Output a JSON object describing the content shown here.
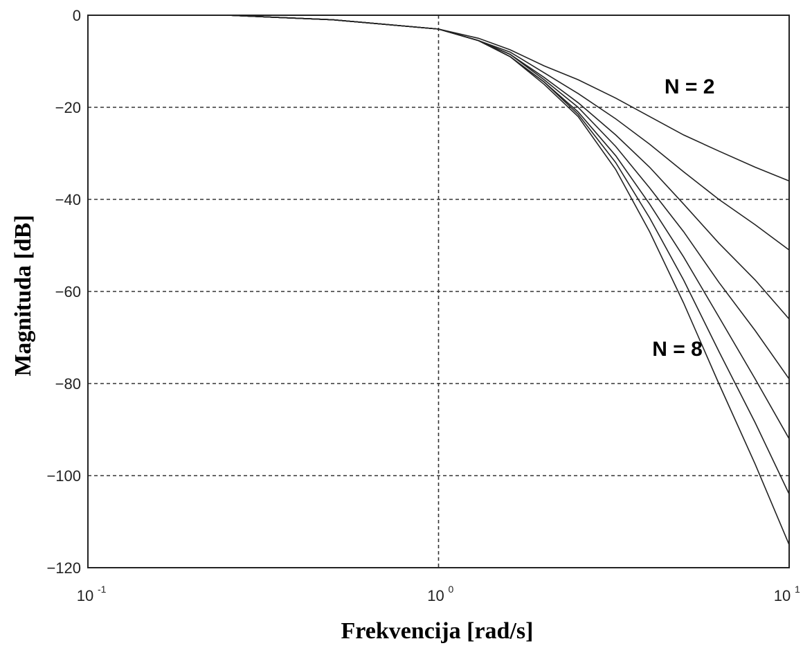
{
  "chart_data": {
    "type": "line",
    "xlabel": "Frekvencija [rad/s]",
    "ylabel": "Magnituda [dB]",
    "xscale": "log",
    "xlim": [
      0.1,
      10
    ],
    "ylim": [
      -120,
      0
    ],
    "grid": true,
    "x_ticks": [
      {
        "base": "10",
        "exp": "-1",
        "value": 0.1
      },
      {
        "base": "10",
        "exp": "0",
        "value": 1
      },
      {
        "base": "10",
        "exp": "1",
        "value": 10
      }
    ],
    "y_ticks": [
      {
        "label": "0",
        "value": 0
      },
      {
        "label": "−20",
        "value": -20
      },
      {
        "label": "−40",
        "value": -40
      },
      {
        "label": "−60",
        "value": -60
      },
      {
        "label": "−80",
        "value": -80
      },
      {
        "label": "−100",
        "value": -100
      },
      {
        "label": "−120",
        "value": -120
      }
    ],
    "annotations": [
      {
        "text": "N = 2",
        "x": 5.2,
        "y": -17
      },
      {
        "text": "N = 8",
        "x": 4.8,
        "y": -74
      }
    ],
    "x": [
      0.25,
      0.5,
      1.0,
      1.3,
      1.6,
      2.0,
      2.5,
      3.2,
      4.0,
      5.0,
      6.3,
      8.0,
      10.0
    ],
    "series": [
      {
        "values": [
          0,
          -1,
          -3,
          -5,
          -7.5,
          -11,
          -14,
          -18,
          -22,
          -26,
          -29.5,
          -33,
          -36
        ]
      },
      {
        "values": [
          0,
          -1,
          -3,
          -5.5,
          -8,
          -12.5,
          -17,
          -22.5,
          -28,
          -34,
          -40,
          -45.5,
          -51
        ]
      },
      {
        "values": [
          0,
          -1,
          -3,
          -5.5,
          -8.5,
          -13.5,
          -19,
          -26,
          -33,
          -41,
          -49.5,
          -57.5,
          -66
        ]
      },
      {
        "values": [
          0,
          -1,
          -3,
          -5.5,
          -8.5,
          -14,
          -20,
          -28.5,
          -37.5,
          -47,
          -58,
          -68.5,
          -79
        ]
      },
      {
        "values": [
          0,
          -1,
          -3,
          -5.5,
          -9,
          -14.5,
          -21,
          -30.5,
          -41,
          -52.5,
          -65.5,
          -79,
          -92
        ]
      },
      {
        "values": [
          0,
          -1,
          -3,
          -5.5,
          -9,
          -14.5,
          -21.5,
          -32,
          -44,
          -57.5,
          -73,
          -88.5,
          -104
        ]
      },
      {
        "values": [
          0,
          -1,
          -3,
          -5.5,
          -9,
          -15,
          -22,
          -33.5,
          -47,
          -62.5,
          -80,
          -97.5,
          -115
        ]
      }
    ]
  }
}
